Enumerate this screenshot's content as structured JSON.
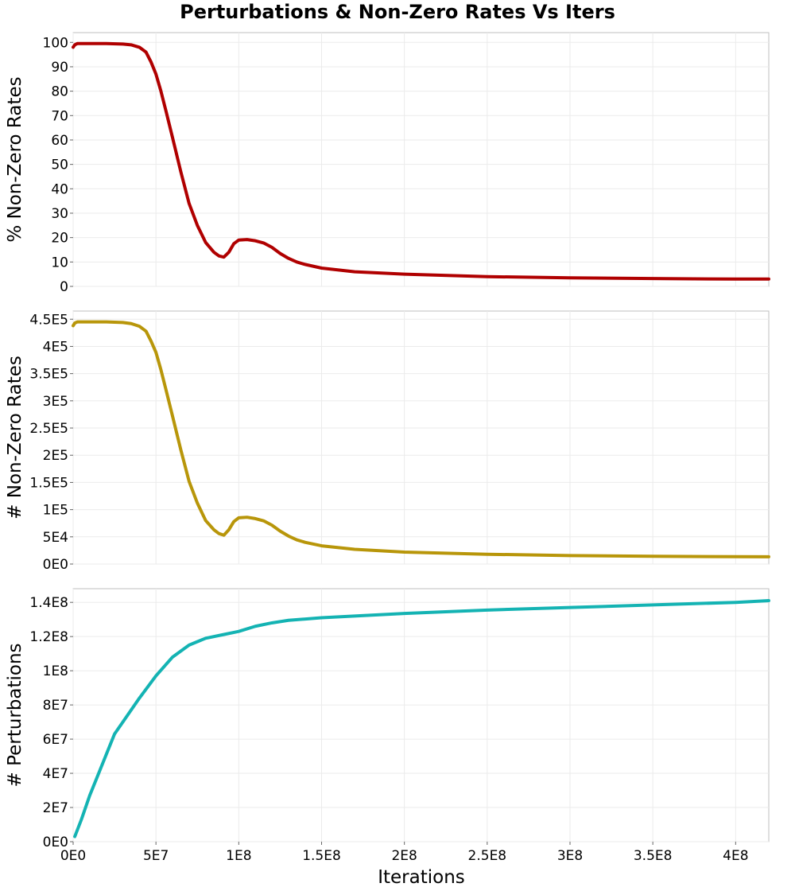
{
  "chart_data": {
    "type": "line",
    "title": "Perturbations & Non-Zero Rates Vs Iters",
    "xlabel": "Iterations",
    "xlim": [
      0,
      420000000
    ],
    "x_ticks": [
      0,
      50000000,
      100000000,
      150000000,
      200000000,
      250000000,
      300000000,
      350000000,
      400000000
    ],
    "x_tick_labels": [
      "0E0",
      "5E7",
      "1E8",
      "1.5E8",
      "2E8",
      "2.5E8",
      "3E8",
      "3.5E8",
      "4E8"
    ],
    "grid": true,
    "panels": [
      {
        "ylabel": "% Non-Zero Rates",
        "ylim": [
          0,
          104
        ],
        "y_ticks": [
          0,
          10,
          20,
          30,
          40,
          50,
          60,
          70,
          80,
          90,
          100
        ],
        "y_tick_labels": [
          "0",
          "10",
          "20",
          "30",
          "40",
          "50",
          "60",
          "70",
          "80",
          "90",
          "100"
        ],
        "color": "#b00000",
        "x": [
          0,
          1000000,
          2500000,
          10000000,
          20000000,
          30000000,
          35000000,
          40000000,
          44000000,
          47000000,
          50000000,
          53000000,
          56000000,
          60000000,
          65000000,
          70000000,
          75000000,
          80000000,
          85000000,
          88000000,
          91000000,
          94000000,
          97000000,
          100000000,
          105000000,
          110000000,
          115000000,
          120000000,
          125000000,
          130000000,
          135000000,
          140000000,
          150000000,
          170000000,
          200000000,
          250000000,
          300000000,
          350000000,
          400000000,
          420000000
        ],
        "y": [
          98,
          99,
          99.5,
          99.5,
          99.5,
          99.3,
          99,
          98,
          96,
          92,
          87,
          80,
          72,
          61,
          47,
          34,
          25,
          18,
          14,
          12.5,
          12,
          14,
          17.5,
          19,
          19.2,
          18.7,
          17.8,
          16,
          13.5,
          11.5,
          10,
          9,
          7.5,
          6,
          5,
          4,
          3.5,
          3.2,
          3,
          3
        ]
      },
      {
        "ylabel": "# Non-Zero Rates",
        "ylim": [
          0,
          465000
        ],
        "y_ticks": [
          0,
          50000,
          100000,
          150000,
          200000,
          250000,
          300000,
          350000,
          400000,
          450000
        ],
        "y_tick_labels": [
          "0E0",
          "5E4",
          "1E5",
          "1.5E5",
          "2E5",
          "2.5E5",
          "3E5",
          "3.5E5",
          "4E5",
          "4.5E5"
        ],
        "color": "#b8960a",
        "x": [
          0,
          1000000,
          2500000,
          10000000,
          20000000,
          30000000,
          35000000,
          40000000,
          44000000,
          47000000,
          50000000,
          53000000,
          56000000,
          60000000,
          65000000,
          70000000,
          75000000,
          80000000,
          85000000,
          88000000,
          91000000,
          94000000,
          97000000,
          100000000,
          105000000,
          110000000,
          115000000,
          120000000,
          125000000,
          130000000,
          135000000,
          140000000,
          150000000,
          170000000,
          200000000,
          250000000,
          300000000,
          350000000,
          400000000,
          420000000
        ],
        "y": [
          438000,
          443000,
          445000,
          445000,
          445000,
          444000,
          442000,
          437000,
          428000,
          410000,
          389000,
          357000,
          321000,
          272000,
          210000,
          152000,
          112000,
          80000,
          63000,
          56000,
          53000,
          63000,
          78000,
          85000,
          86000,
          83500,
          79500,
          71500,
          60500,
          51500,
          44500,
          40000,
          33500,
          27000,
          22000,
          18000,
          15500,
          14300,
          13500,
          13300
        ]
      },
      {
        "ylabel": "# Perturbations",
        "ylim": [
          0,
          148000000
        ],
        "y_ticks": [
          0,
          20000000,
          40000000,
          60000000,
          80000000,
          100000000,
          120000000,
          140000000
        ],
        "y_tick_labels": [
          "0E0",
          "2E7",
          "4E7",
          "6E7",
          "8E7",
          "1E8",
          "1.2E8",
          "1.4E8"
        ],
        "color": "#14b3b3",
        "x": [
          1000000,
          5000000,
          10000000,
          15000000,
          20000000,
          25000000,
          30000000,
          40000000,
          50000000,
          60000000,
          70000000,
          80000000,
          90000000,
          100000000,
          110000000,
          120000000,
          130000000,
          150000000,
          200000000,
          250000000,
          300000000,
          350000000,
          400000000,
          420000000
        ],
        "y": [
          3000000,
          13000000,
          27000000,
          39000000,
          51000000,
          63000000,
          70000000,
          84000000,
          97000000,
          108000000,
          115000000,
          119000000,
          121000000,
          123000000,
          126000000,
          128000000,
          129500000,
          131000000,
          133500000,
          135500000,
          137000000,
          138500000,
          140000000,
          141000000
        ]
      }
    ]
  }
}
